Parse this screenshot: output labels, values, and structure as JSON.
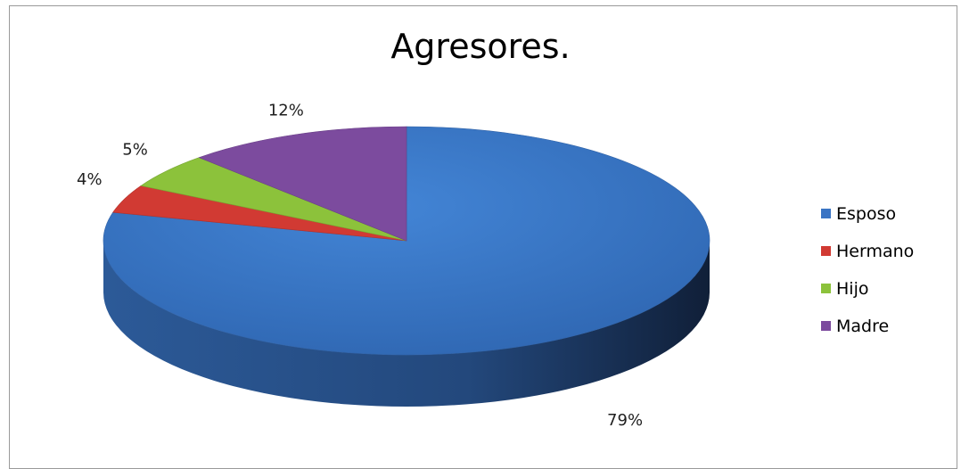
{
  "chart_data": {
    "type": "pie",
    "title": "Agresores.",
    "legend_position": "right",
    "slices": [
      {
        "name": "Esposo",
        "value": 79,
        "label": "79%",
        "color": "#3a74c4"
      },
      {
        "name": "Hermano",
        "value": 4,
        "label": "4%",
        "color": "#d13a33"
      },
      {
        "name": "Hijo",
        "value": 5,
        "label": "5%",
        "color": "#8cc23b"
      },
      {
        "name": "Madre",
        "value": 12,
        "label": "12%",
        "color": "#7c4b9e"
      }
    ]
  }
}
